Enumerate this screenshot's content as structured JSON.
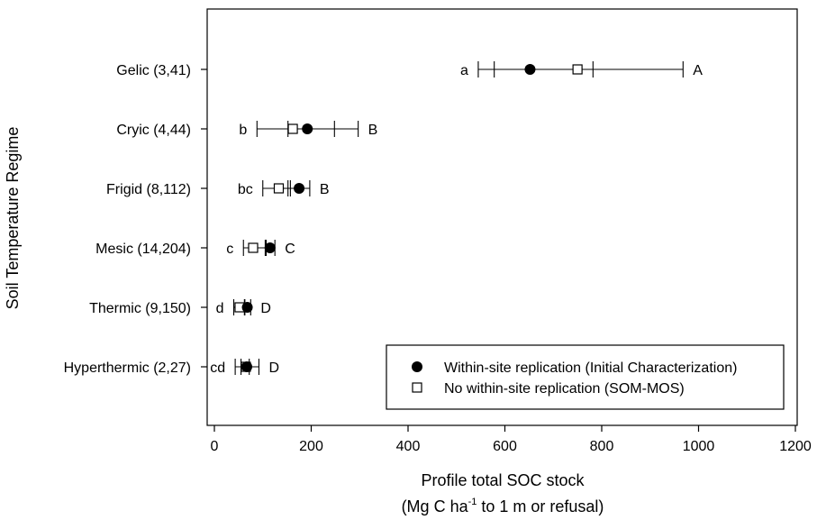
{
  "chart_data": {
    "type": "scatter",
    "orientation": "horizontal",
    "ylabel": "Soil Temperature Regime",
    "xlabel_line1": "Profile total SOC stock",
    "xlabel_line2_pre": "(Mg C ha",
    "xlabel_line2_sup": "-1",
    "xlabel_line2_post": " to 1 m or refusal)",
    "xlim": [
      -20,
      1200
    ],
    "xticks": [
      0,
      200,
      400,
      600,
      800,
      1000,
      1200
    ],
    "grid": false,
    "legend_position": "bottom-right",
    "categories": [
      "Gelic (3,41)",
      "Cryic (4,44)",
      "Frigid (8,112)",
      "Mesic (14,204)",
      "Thermic (9,150)",
      "Hyperthermic (2,27)"
    ],
    "series": [
      {
        "name": "Within-site replication (Initial Characterization)",
        "marker": "filled-circle",
        "values": [
          652,
          192,
          175,
          115,
          68,
          67
        ],
        "err_low": [
          578,
          88,
          152,
          107,
          62,
          55
        ],
        "err_high": [
          968,
          297,
          197,
          125,
          75,
          72
        ],
        "group_letters": [
          "A",
          "B",
          "B",
          "C",
          "D",
          "D"
        ]
      },
      {
        "name": "No within-site replication (SOM-MOS)",
        "marker": "open-square",
        "values": [
          750,
          162,
          133,
          80,
          52,
          65
        ],
        "err_low": [
          545,
          152,
          100,
          60,
          40,
          43
        ],
        "err_high": [
          782,
          248,
          157,
          105,
          63,
          92
        ],
        "group_letters": [
          "a",
          "b",
          "bc",
          "c",
          "d",
          "cd"
        ]
      }
    ]
  }
}
